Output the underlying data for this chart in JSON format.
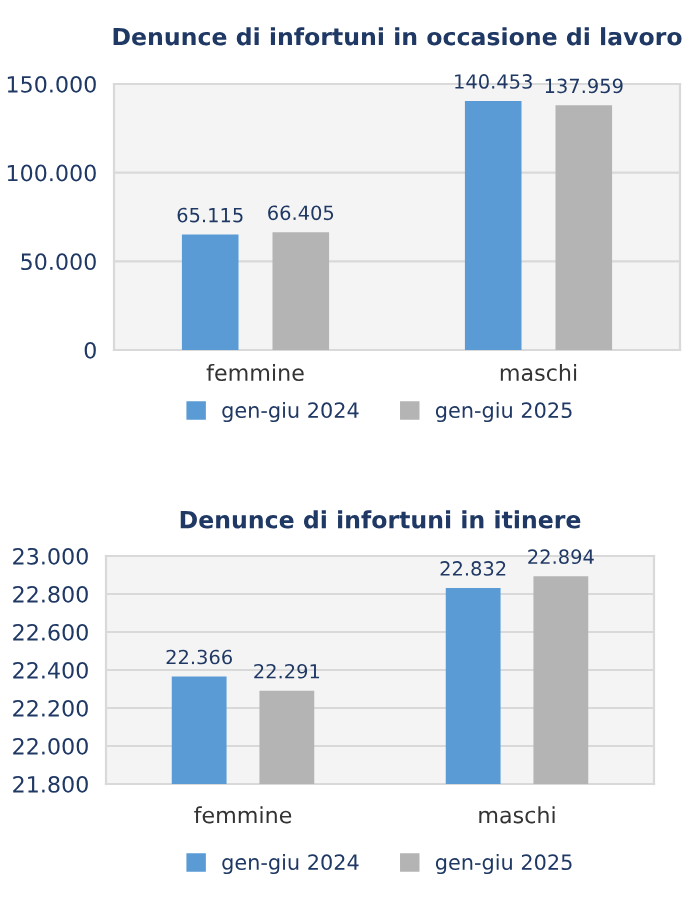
{
  "chart_data": [
    {
      "type": "bar",
      "title": "Denunce di infortuni in occasione di lavoro",
      "categories": [
        "femmine",
        "maschi"
      ],
      "series": [
        {
          "name": "gen-giu 2024",
          "color": "#5b9bd5",
          "values": [
            65115,
            140453
          ],
          "value_labels": [
            "65.115",
            "140.453"
          ]
        },
        {
          "name": "gen-giu 2025",
          "color": "#b4b4b4",
          "values": [
            66405,
            137959
          ],
          "value_labels": [
            "66.405",
            "137.959"
          ]
        }
      ],
      "ylim": [
        0,
        150000
      ],
      "yticks": [
        0,
        {
          "value": 50000,
          "label": "50.000"
        },
        {
          "value": 100000,
          "label": "100.000"
        },
        {
          "value": 150000,
          "label": "150.000"
        }
      ],
      "grid": "y",
      "legend": "bottom"
    },
    {
      "type": "bar",
      "title": "Denunce di infortuni in itinere",
      "categories": [
        "femmine",
        "maschi"
      ],
      "series": [
        {
          "name": "gen-giu 2024",
          "color": "#5b9bd5",
          "values": [
            22366,
            22832
          ],
          "value_labels": [
            "22.366",
            "22.832"
          ]
        },
        {
          "name": "gen-giu 2025",
          "color": "#b4b4b4",
          "values": [
            22291,
            22894
          ],
          "value_labels": [
            "22.291",
            "22.894"
          ]
        }
      ],
      "ylim": [
        21800,
        23000
      ],
      "yticks": [
        {
          "value": 21800,
          "label": "21.800"
        },
        {
          "value": 22000,
          "label": "22.000"
        },
        {
          "value": 22200,
          "label": "22.200"
        },
        {
          "value": 22400,
          "label": "22.400"
        },
        {
          "value": 22600,
          "label": "22.600"
        },
        {
          "value": 22800,
          "label": "22.800"
        },
        {
          "value": 23000,
          "label": "23.000"
        }
      ],
      "grid": "y",
      "legend": "bottom"
    }
  ]
}
